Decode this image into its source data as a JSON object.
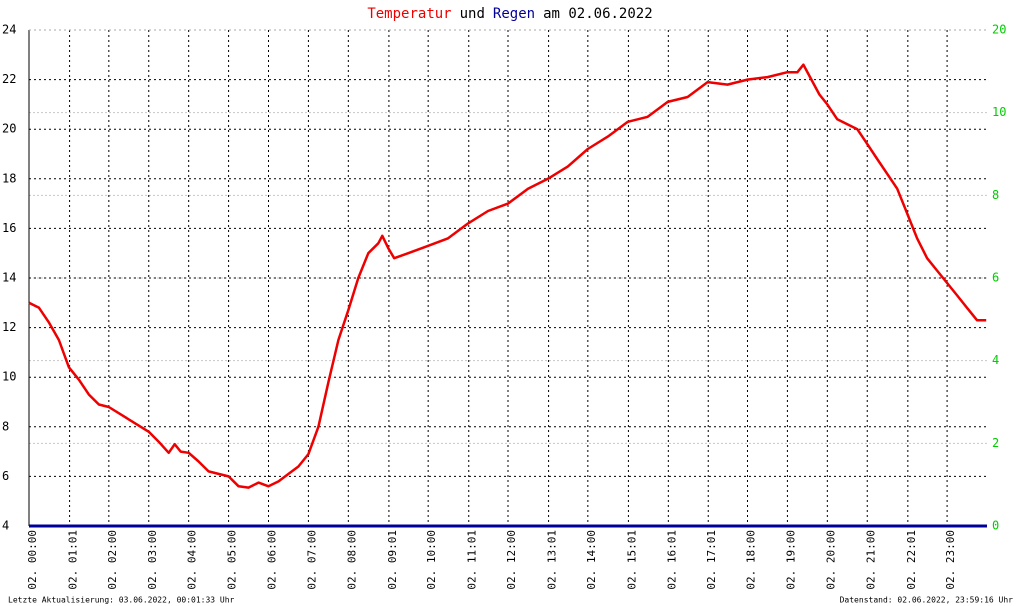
{
  "chart_data": {
    "type": "line",
    "title_parts": [
      {
        "text": "Temperatur",
        "color": "#ee0000"
      },
      {
        "text": "und",
        "color": "#000000"
      },
      {
        "text": "Regen",
        "color": "#000099"
      },
      {
        "text": "am 02.06.2022",
        "color": "#000000"
      }
    ],
    "footer_left": "Letzte Aktualisierung: 03.06.2022, 00:01:33 Uhr",
    "footer_right": "Datenstand: 02.06.2022, 23:59:16 Uhr",
    "xlim": [
      0,
      24
    ],
    "xticks": [
      {
        "value": 0,
        "label": "02. 00:00"
      },
      {
        "value": 1.0167,
        "label": "02. 01:01"
      },
      {
        "value": 2,
        "label": "02. 02:00"
      },
      {
        "value": 3,
        "label": "02. 03:00"
      },
      {
        "value": 4,
        "label": "02. 04:00"
      },
      {
        "value": 5,
        "label": "02. 05:00"
      },
      {
        "value": 6,
        "label": "02. 06:00"
      },
      {
        "value": 7,
        "label": "02. 07:00"
      },
      {
        "value": 8,
        "label": "02. 08:00"
      },
      {
        "value": 9.0167,
        "label": "02. 09:01"
      },
      {
        "value": 10,
        "label": "02. 10:00"
      },
      {
        "value": 11.0167,
        "label": "02. 11:01"
      },
      {
        "value": 12,
        "label": "02. 12:00"
      },
      {
        "value": 13.0167,
        "label": "02. 13:01"
      },
      {
        "value": 14,
        "label": "02. 14:00"
      },
      {
        "value": 15.0167,
        "label": "02. 15:01"
      },
      {
        "value": 16.0167,
        "label": "02. 16:01"
      },
      {
        "value": 17.0167,
        "label": "02. 17:01"
      },
      {
        "value": 18,
        "label": "02. 18:00"
      },
      {
        "value": 19,
        "label": "02. 19:00"
      },
      {
        "value": 20,
        "label": "02. 20:00"
      },
      {
        "value": 21,
        "label": "02. 21:00"
      },
      {
        "value": 22.0167,
        "label": "02. 22:01"
      },
      {
        "value": 23,
        "label": "02. 23:00"
      }
    ],
    "ylim": [
      4,
      24
    ],
    "yticks": [
      4,
      6,
      8,
      10,
      12,
      14,
      16,
      18,
      20,
      22,
      24
    ],
    "y2ticks": [
      0,
      2,
      4,
      6,
      8,
      10,
      20
    ],
    "y2_color": "#00cc00",
    "grid": true,
    "series": [
      {
        "name": "Temperatur",
        "color": "#ee0000",
        "axis": "y",
        "x": [
          0,
          0.25,
          0.5,
          0.75,
          1.0,
          1.25,
          1.5,
          1.75,
          2.0,
          2.5,
          3.0,
          3.25,
          3.5,
          3.65,
          3.8,
          4.0,
          4.25,
          4.5,
          4.75,
          5.0,
          5.25,
          5.5,
          5.75,
          6.0,
          6.25,
          6.5,
          6.75,
          7.0,
          7.25,
          7.5,
          7.75,
          8.0,
          8.25,
          8.5,
          8.75,
          8.85,
          9.0,
          9.15,
          9.5,
          10.0,
          10.5,
          11.0,
          11.5,
          12.0,
          12.5,
          13.0,
          13.5,
          14.0,
          14.5,
          15.0,
          15.5,
          16.0,
          16.5,
          17.0,
          17.5,
          18.0,
          18.5,
          19.0,
          19.25,
          19.4,
          19.6,
          19.8,
          20.0,
          20.25,
          20.5,
          20.75,
          21.0,
          21.25,
          21.5,
          21.75,
          22.0,
          22.25,
          22.5,
          22.75,
          23.0,
          23.25,
          23.5,
          23.75,
          23.98
        ],
        "values": [
          13.0,
          12.8,
          12.2,
          11.5,
          10.4,
          9.9,
          9.3,
          8.9,
          8.8,
          8.3,
          7.8,
          7.4,
          6.95,
          7.3,
          7.0,
          6.95,
          6.6,
          6.2,
          6.1,
          6.0,
          5.6,
          5.55,
          5.75,
          5.6,
          5.8,
          6.1,
          6.4,
          6.9,
          8.0,
          9.8,
          11.5,
          12.7,
          14.0,
          15.0,
          15.4,
          15.7,
          15.2,
          14.8,
          15.0,
          15.3,
          15.6,
          16.2,
          16.7,
          17.0,
          17.6,
          18.0,
          18.5,
          19.2,
          19.7,
          20.3,
          20.5,
          21.1,
          21.3,
          21.9,
          21.8,
          22.0,
          22.1,
          22.3,
          22.3,
          22.6,
          22.0,
          21.4,
          21.0,
          20.4,
          20.2,
          20.0,
          19.4,
          18.8,
          18.2,
          17.6,
          16.6,
          15.6,
          14.8,
          14.3,
          13.8,
          13.3,
          12.8,
          12.3,
          12.3
        ]
      },
      {
        "name": "Regen",
        "color": "#000099",
        "axis": "y2",
        "x": [
          0,
          24
        ],
        "values": [
          0,
          0
        ]
      }
    ]
  }
}
